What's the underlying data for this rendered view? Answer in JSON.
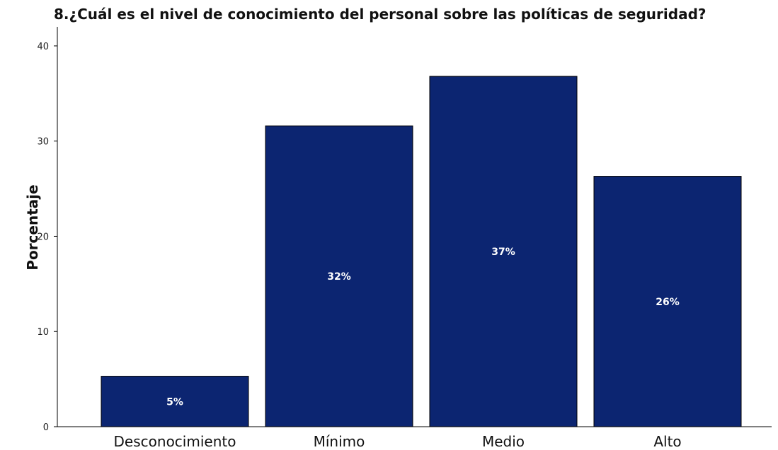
{
  "chart_data": {
    "type": "bar",
    "title": "8.¿Cuál es el nivel de conocimiento del personal sobre las políticas de seguridad?",
    "xlabel": "",
    "ylabel": "Porcentaje",
    "categories": [
      "Desconocimiento",
      "Mínimo",
      "Medio",
      "Alto"
    ],
    "values": [
      5.3,
      31.6,
      36.8,
      26.3
    ],
    "data_labels": [
      "5%",
      "32%",
      "37%",
      "26%"
    ],
    "ylim": [
      0,
      42
    ],
    "yticks": [
      "0",
      "10",
      "20",
      "30",
      "40"
    ],
    "grid": false,
    "legend": "none",
    "bar_color": "#0c2571",
    "bar_edge_color": "#000000"
  }
}
